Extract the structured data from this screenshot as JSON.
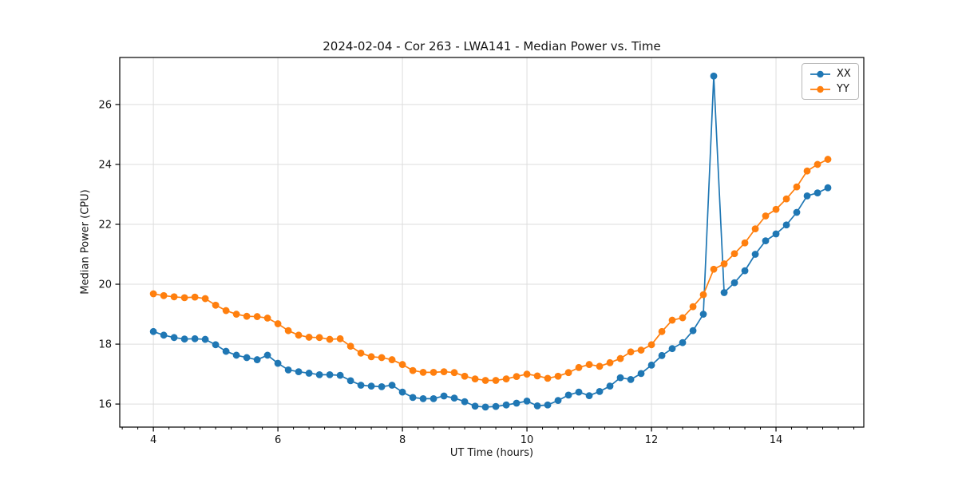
{
  "chart_data": {
    "type": "line",
    "title": "2024-02-04 - Cor 263 - LWA141 - Median Power vs. Time",
    "xlabel": "UT Time (hours)",
    "ylabel": "Median Power (CPU)",
    "xlim": [
      3.46,
      15.41
    ],
    "ylim": [
      15.23,
      27.57
    ],
    "xticks": [
      4,
      6,
      8,
      10,
      12,
      14
    ],
    "yticks": [
      16,
      18,
      20,
      22,
      24,
      26
    ],
    "x_minor_tick_step": 0.25,
    "grid": true,
    "legend_position": "upper right",
    "x": [
      4.0,
      4.167,
      4.333,
      4.5,
      4.667,
      4.833,
      5.0,
      5.167,
      5.333,
      5.5,
      5.667,
      5.833,
      6.0,
      6.167,
      6.333,
      6.5,
      6.667,
      6.833,
      7.0,
      7.167,
      7.333,
      7.5,
      7.667,
      7.833,
      8.0,
      8.167,
      8.333,
      8.5,
      8.667,
      8.833,
      9.0,
      9.167,
      9.333,
      9.5,
      9.667,
      9.833,
      10.0,
      10.167,
      10.333,
      10.5,
      10.667,
      10.833,
      11.0,
      11.167,
      11.333,
      11.5,
      11.667,
      11.833,
      12.0,
      12.167,
      12.333,
      12.5,
      12.667,
      12.833,
      13.0,
      13.167,
      13.333,
      13.5,
      13.667,
      13.833,
      14.0,
      14.167,
      14.333,
      14.5,
      14.667,
      14.833
    ],
    "series": [
      {
        "name": "XX",
        "color": "#1f77b4",
        "values": [
          18.42,
          18.3,
          18.22,
          18.17,
          18.18,
          18.16,
          17.98,
          17.76,
          17.63,
          17.55,
          17.48,
          17.63,
          17.36,
          17.14,
          17.08,
          17.03,
          16.98,
          16.98,
          16.96,
          16.78,
          16.63,
          16.6,
          16.58,
          16.63,
          16.4,
          16.22,
          16.18,
          16.18,
          16.27,
          16.2,
          16.08,
          15.93,
          15.9,
          15.92,
          15.97,
          16.03,
          16.1,
          15.94,
          15.97,
          16.12,
          16.3,
          16.4,
          16.28,
          16.42,
          16.6,
          16.88,
          16.82,
          17.02,
          17.3,
          17.62,
          17.85,
          18.05,
          18.45,
          19.0,
          26.95,
          19.72,
          20.05,
          20.45,
          21.0,
          21.45,
          21.68,
          21.98,
          22.4,
          22.95,
          23.05,
          23.22
        ]
      },
      {
        "name": "YY",
        "color": "#ff7f0e",
        "values": [
          19.68,
          19.62,
          19.58,
          19.55,
          19.57,
          19.52,
          19.3,
          19.12,
          19.0,
          18.93,
          18.92,
          18.87,
          18.68,
          18.45,
          18.3,
          18.23,
          18.22,
          18.16,
          18.18,
          17.93,
          17.7,
          17.58,
          17.55,
          17.48,
          17.32,
          17.12,
          17.06,
          17.06,
          17.08,
          17.05,
          16.93,
          16.84,
          16.79,
          16.79,
          16.84,
          16.92,
          17.0,
          16.94,
          16.86,
          16.93,
          17.05,
          17.22,
          17.32,
          17.26,
          17.38,
          17.52,
          17.74,
          17.8,
          17.98,
          18.42,
          18.8,
          18.88,
          19.25,
          19.65,
          20.5,
          20.68,
          21.02,
          21.38,
          21.85,
          22.28,
          22.5,
          22.85,
          23.25,
          23.78,
          24.0,
          24.17
        ]
      }
    ]
  },
  "colors": {
    "background": "#ffffff",
    "grid": "#dddddd",
    "spine": "#000000",
    "text": "#151515"
  }
}
